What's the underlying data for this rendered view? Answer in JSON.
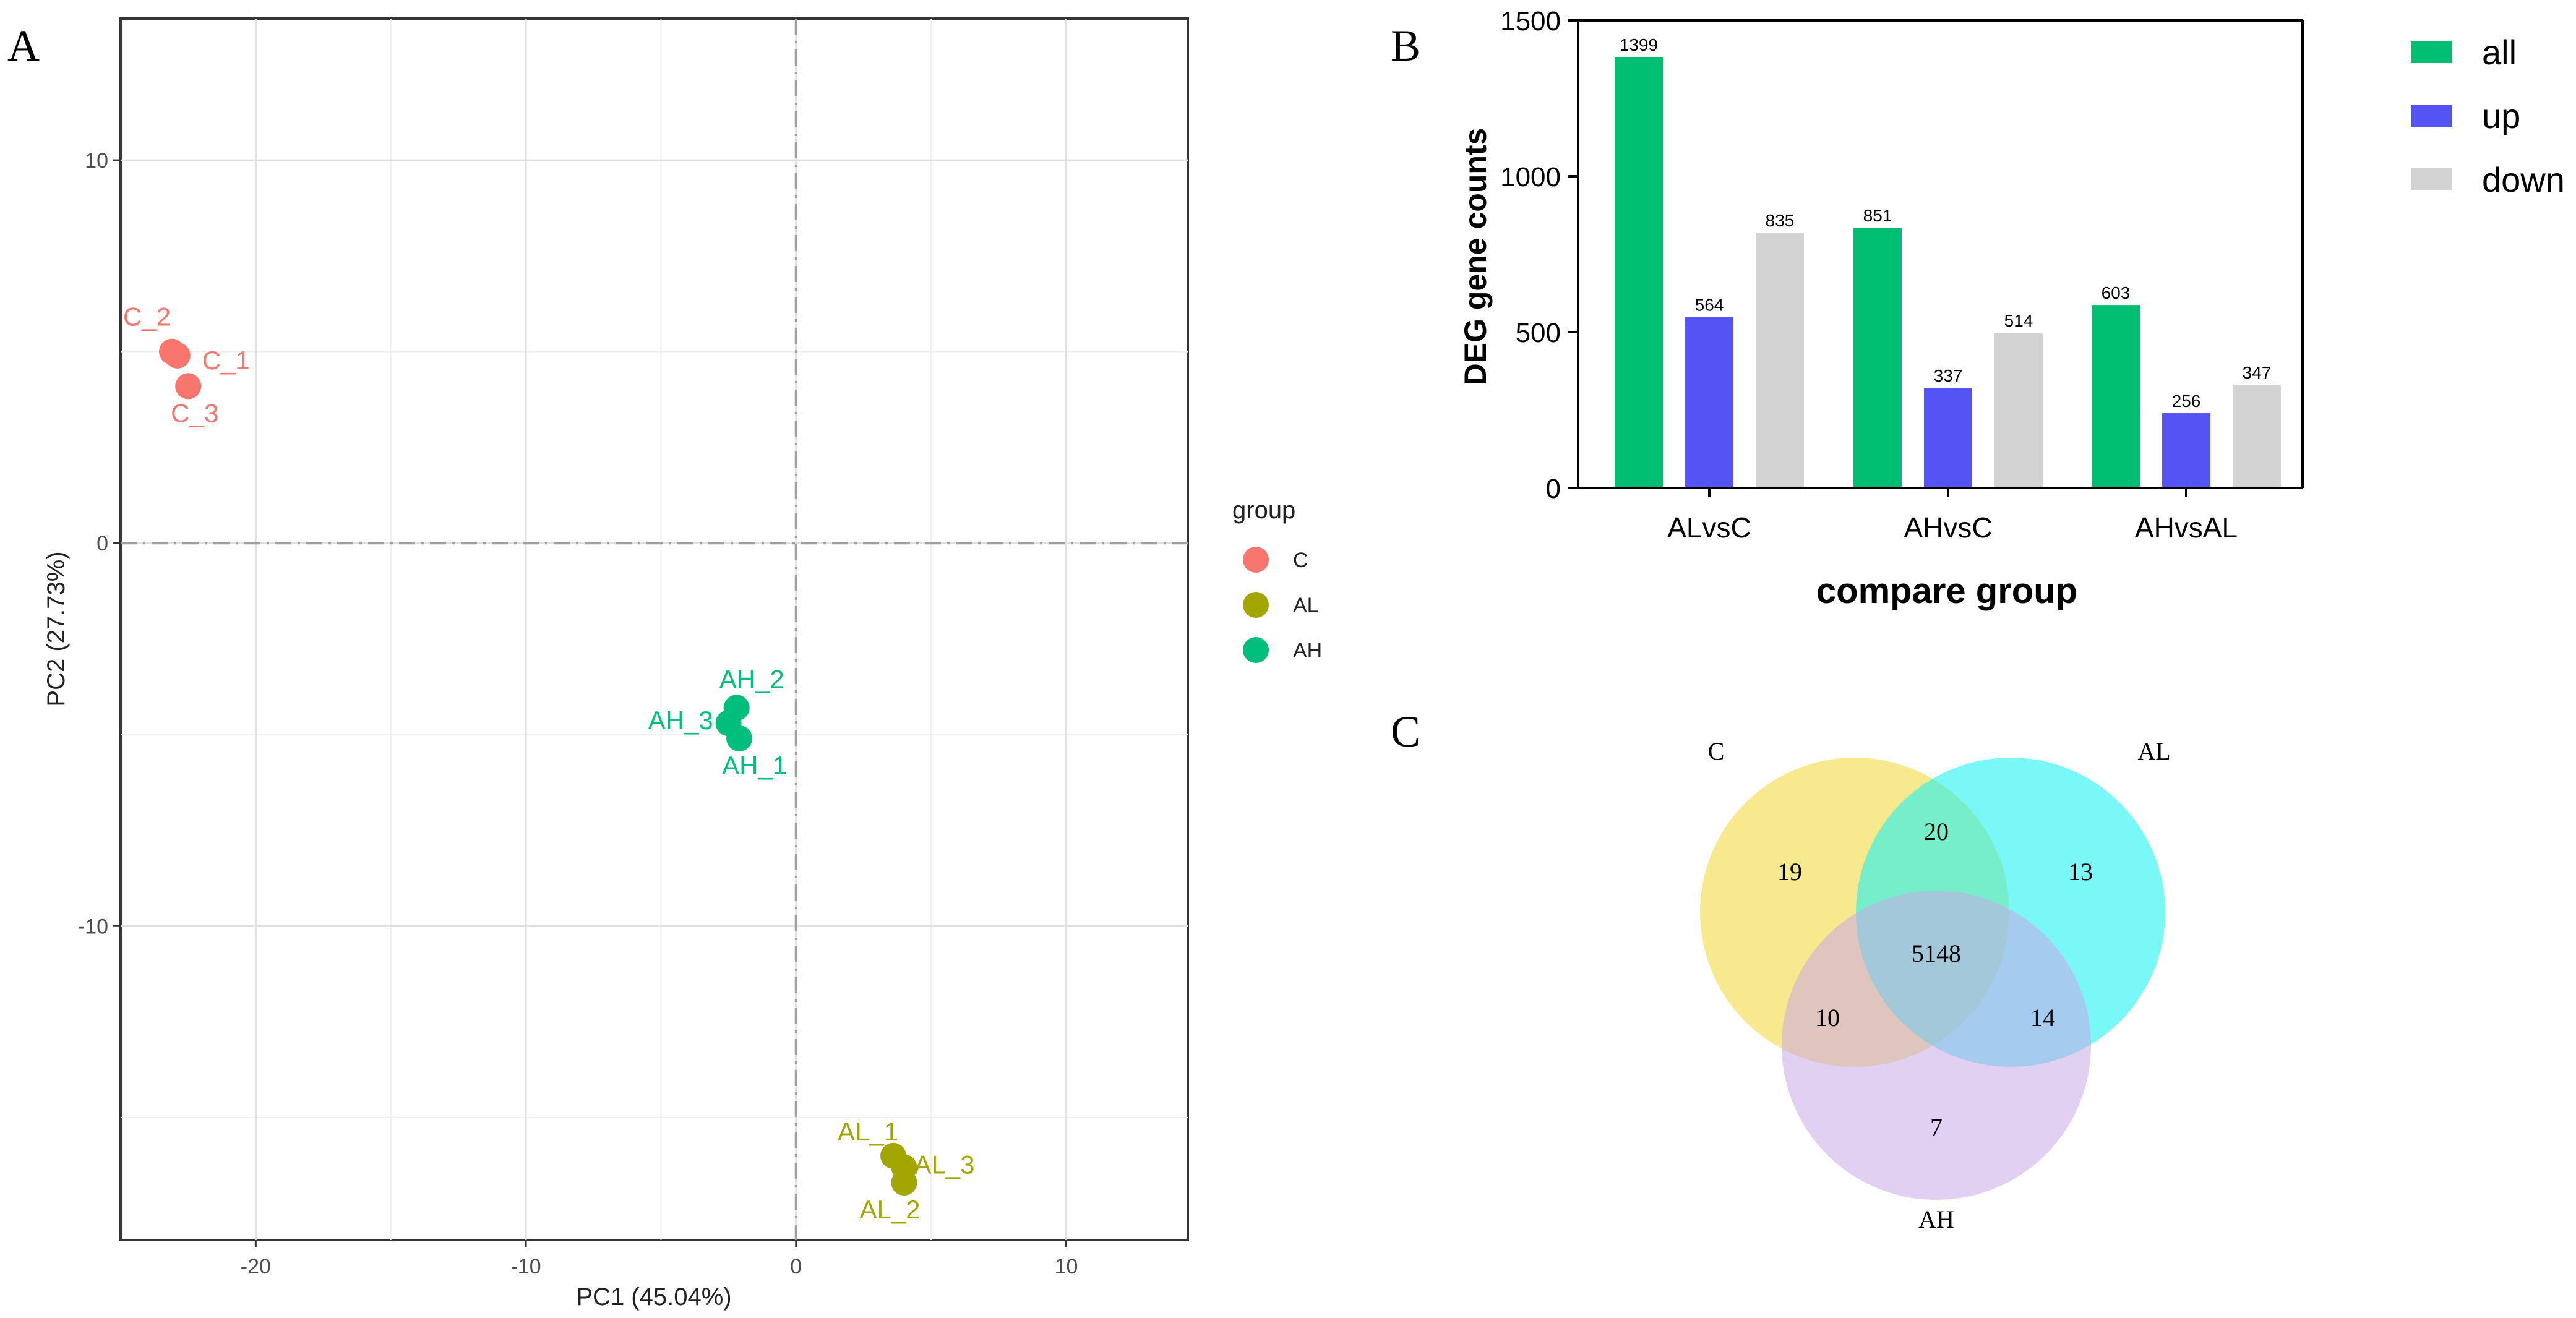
{
  "panels": {
    "a": "A",
    "b": "B",
    "c": "C"
  },
  "colors": {
    "C": "#f8766d",
    "AL": "#a3a500",
    "AH": "#00bf7d",
    "all": "#00bf72",
    "up": "#5454f4",
    "down": "#d3d3d3",
    "venn_C": "#f5e26a",
    "venn_AL": "#22f2f2",
    "venn_AH": "#c9a9e8"
  },
  "chart_data": [
    {
      "id": "pca",
      "type": "scatter",
      "xlabel": "PC1 (45.04%)",
      "ylabel": "PC2 (27.73%)",
      "xlim": [
        -25,
        14.5
      ],
      "ylim": [
        -18.2,
        13.7
      ],
      "xticks": [
        -20,
        -10,
        0,
        10
      ],
      "yticks": [
        10,
        0,
        -10
      ],
      "legend_title": "group",
      "legend": [
        "C",
        "AL",
        "AH"
      ],
      "points": [
        {
          "label": "C_1",
          "group": "C",
          "x": -22.9,
          "y": 4.9
        },
        {
          "label": "C_2",
          "group": "C",
          "x": -23.1,
          "y": 5.0
        },
        {
          "label": "C_3",
          "group": "C",
          "x": -22.5,
          "y": 4.1
        },
        {
          "label": "AH_1",
          "group": "AH",
          "x": -2.1,
          "y": -5.1
        },
        {
          "label": "AH_2",
          "group": "AH",
          "x": -2.2,
          "y": -4.3
        },
        {
          "label": "AH_3",
          "group": "AH",
          "x": -2.5,
          "y": -4.7
        },
        {
          "label": "AL_1",
          "group": "AL",
          "x": 3.6,
          "y": -16.0
        },
        {
          "label": "AL_2",
          "group": "AL",
          "x": 4.0,
          "y": -16.7
        },
        {
          "label": "AL_3",
          "group": "AL",
          "x": 4.0,
          "y": -16.3
        }
      ]
    },
    {
      "id": "deg",
      "type": "bar",
      "xlabel": "compare group",
      "ylabel": "DEG gene counts",
      "ylim": [
        0,
        1500
      ],
      "yticks": [
        0,
        500,
        1000,
        1500
      ],
      "categories": [
        "ALvsC",
        "AHvsC",
        "AHvsAL"
      ],
      "series": [
        {
          "name": "all",
          "values": [
            1399,
            851,
            603
          ]
        },
        {
          "name": "up",
          "values": [
            564,
            337,
            256
          ]
        },
        {
          "name": "down",
          "values": [
            835,
            514,
            347
          ]
        }
      ],
      "bar_heights": [
        [
          1383,
          549,
          819
        ],
        [
          835,
          321,
          498
        ],
        [
          587,
          240,
          331
        ]
      ]
    },
    {
      "id": "venn",
      "type": "venn",
      "sets": [
        "C",
        "AL",
        "AH"
      ],
      "regions": {
        "C_only": "19",
        "AL_only": "13",
        "AH_only": "7",
        "C_AL": "20",
        "C_AH": "10",
        "AL_AH": "14",
        "C_AL_AH": "5148"
      }
    }
  ]
}
